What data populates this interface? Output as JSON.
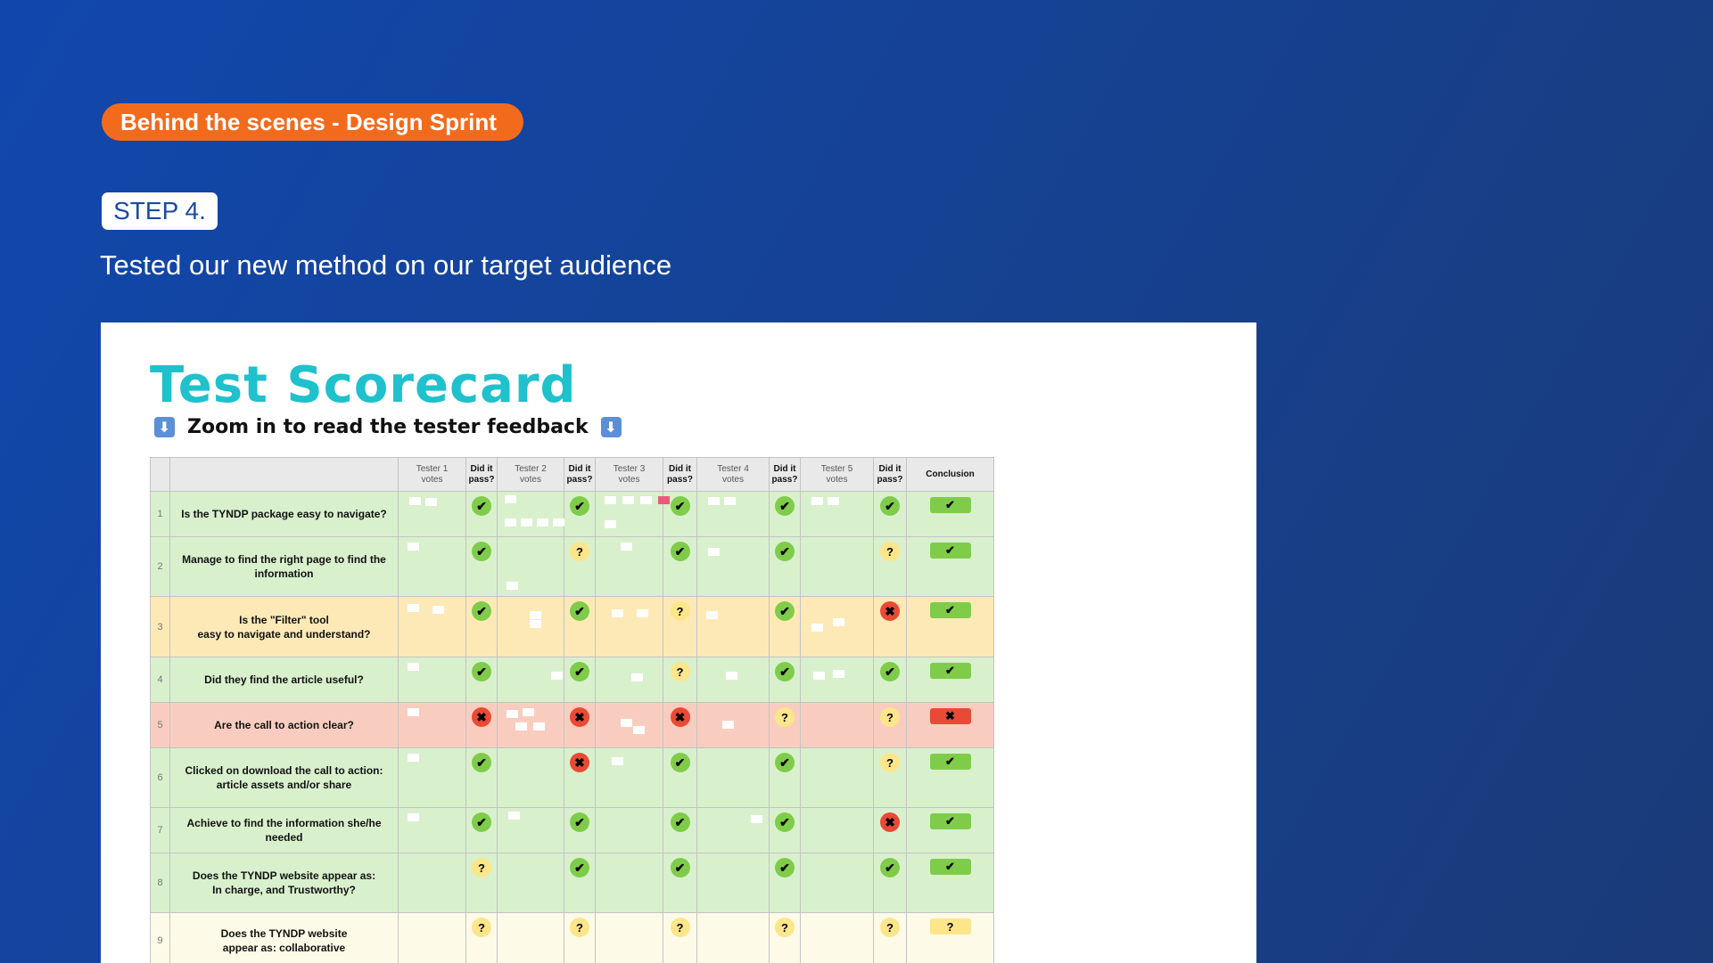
{
  "header": {
    "tag_label": "Behind the scenes - Design Sprint",
    "step_label": "STEP 4.",
    "subtitle": "Tested our new method on our target audience"
  },
  "scorecard": {
    "title": "Test Scorecard",
    "subtitle": "Zoom in to read the tester feedback",
    "columns": {
      "tester1": [
        "Tester 1",
        "votes"
      ],
      "tester2": [
        "Tester 2",
        "votes"
      ],
      "tester3": [
        "Tester 3",
        "votes"
      ],
      "tester4": [
        "Tester 4",
        "votes"
      ],
      "tester5": [
        "Tester 5",
        "votes"
      ],
      "pass": [
        "Did it",
        "pass?"
      ],
      "conclusion": "Conclusion"
    },
    "rows": [
      {
        "num": "1",
        "question": [
          "Is the TYNDP package easy to navigate?"
        ],
        "results": [
          "pass",
          "pass",
          "pass",
          "pass",
          "pass"
        ],
        "conclusion": "pass",
        "color": "green"
      },
      {
        "num": "2",
        "question": [
          "Manage to find the right page to find the",
          "information"
        ],
        "results": [
          "pass",
          "unknown",
          "pass",
          "pass",
          "unknown"
        ],
        "conclusion": "pass",
        "color": "green"
      },
      {
        "num": "3",
        "question": [
          "Is the \"Filter\" tool",
          "easy to navigate and understand?"
        ],
        "results": [
          "pass",
          "pass",
          "unknown",
          "pass",
          "fail"
        ],
        "conclusion": "pass",
        "color": "yellow"
      },
      {
        "num": "4",
        "question": [
          "Did they find the article useful?"
        ],
        "results": [
          "pass",
          "pass",
          "unknown",
          "pass",
          "pass"
        ],
        "conclusion": "pass",
        "color": "green"
      },
      {
        "num": "5",
        "question": [
          "Are the call to action clear?"
        ],
        "results": [
          "fail",
          "fail",
          "fail",
          "unknown",
          "unknown"
        ],
        "conclusion": "fail",
        "color": "red"
      },
      {
        "num": "6",
        "question": [
          "Clicked on download the call to action:",
          "article assets and/or share"
        ],
        "results": [
          "pass",
          "fail",
          "pass",
          "pass",
          "unknown"
        ],
        "conclusion": "pass",
        "color": "green"
      },
      {
        "num": "7",
        "question": [
          "Achieve to find the information she/he needed"
        ],
        "results": [
          "pass",
          "pass",
          "pass",
          "pass",
          "fail"
        ],
        "conclusion": "pass",
        "color": "green"
      },
      {
        "num": "8",
        "question": [
          "Does the TYNDP website appear as:",
          "In charge, and Trustworthy?"
        ],
        "results": [
          "unknown",
          "pass",
          "pass",
          "pass",
          "pass"
        ],
        "conclusion": "pass",
        "color": "green"
      },
      {
        "num": "9",
        "question": [
          "Does the TYNDP website",
          "appear as: collaborative"
        ],
        "results": [
          "unknown",
          "unknown",
          "unknown",
          "unknown",
          "unknown"
        ],
        "conclusion": "unknown",
        "color": "pale"
      }
    ],
    "colors": {
      "pass": "#7fcc4a",
      "fail": "#ea4a35",
      "unknown": "#fde58a",
      "title": "#1ec1cc",
      "tag": "#f26b1d"
    }
  }
}
